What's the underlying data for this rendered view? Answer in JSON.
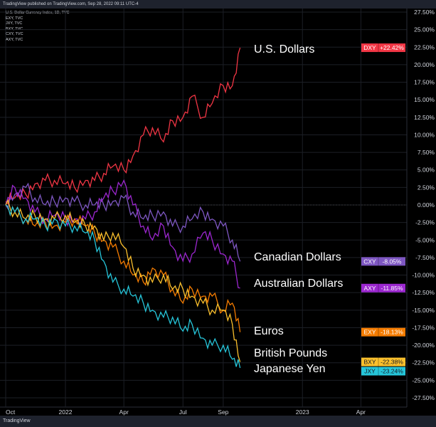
{
  "header": {
    "published": "TradingView published on TradingView.com, Sep 28, 2022 09:11 UTC-4"
  },
  "legend": [
    "U.S. Dollar Currency Index, 1D, TVC",
    "EXY, TVC",
    "JXY, TVC",
    "BXY, TVC",
    "CXY, TVC",
    "AXY, TVC"
  ],
  "footer": {
    "logo": "TradingView"
  },
  "chart_data": {
    "type": "line",
    "xlabel": "",
    "ylabel": "",
    "ylim": [
      -27.5,
      27.5
    ],
    "y_ticks": [
      "27.50%",
      "25.00%",
      "22.50%",
      "20.00%",
      "17.50%",
      "15.00%",
      "12.50%",
      "10.00%",
      "7.50%",
      "5.00%",
      "2.50%",
      "0.00%",
      "-2.50%",
      "-5.00%",
      "-7.50%",
      "-10.00%",
      "-12.50%",
      "-15.00%",
      "-17.50%",
      "-20.00%",
      "-22.50%",
      "-25.00%",
      "-27.50%"
    ],
    "x_ticks": [
      {
        "label": "Oct",
        "date": "2021-10-01"
      },
      {
        "label": "2022",
        "date": "2022-01-01"
      },
      {
        "label": "Apr",
        "date": "2022-04-01"
      },
      {
        "label": "Jul",
        "date": "2022-07-01"
      },
      {
        "label": "Sep",
        "date": "2022-09-01"
      },
      {
        "label": "2023",
        "date": "2023-01-01"
      },
      {
        "label": "Apr",
        "date": "2023-04-01"
      }
    ],
    "grid": true,
    "x": [
      "2021-10-01",
      "2021-10-15",
      "2021-11-01",
      "2021-11-15",
      "2021-12-01",
      "2021-12-15",
      "2022-01-01",
      "2022-01-15",
      "2022-02-01",
      "2022-02-15",
      "2022-03-01",
      "2022-03-15",
      "2022-04-01",
      "2022-04-15",
      "2022-05-01",
      "2022-05-15",
      "2022-06-01",
      "2022-06-15",
      "2022-07-01",
      "2022-07-15",
      "2022-08-01",
      "2022-08-15",
      "2022-09-01",
      "2022-09-15",
      "2022-09-27"
    ],
    "series": [
      {
        "name": "DXY",
        "label": "U.S. Dollars",
        "last": "+22.42%",
        "color": "#f23645",
        "values": [
          0.5,
          1,
          1.5,
          3,
          3.5,
          3.5,
          3,
          2.5,
          3.5,
          3.5,
          4.5,
          5.5,
          5,
          7,
          10,
          11,
          9,
          12,
          12.5,
          15.5,
          12.5,
          14.5,
          17,
          17,
          22.42
        ]
      },
      {
        "name": "CXY",
        "label": "Canadian Dollars",
        "last": "-8.05%",
        "color": "#7e57c2",
        "values": [
          0,
          1.5,
          2.5,
          1,
          0,
          0.5,
          1,
          0.5,
          0,
          0,
          0,
          0.5,
          1,
          -1,
          -2,
          -1.5,
          -1,
          -3,
          -3,
          -2,
          -1,
          -2,
          -3,
          -5,
          -8.05
        ]
      },
      {
        "name": "AXY",
        "label": "Australian Dollars",
        "last": "-11.85%",
        "color": "#9c27d0",
        "values": [
          0,
          2.5,
          1,
          -1,
          -2,
          -1.5,
          -2,
          -2,
          -2,
          -1,
          1,
          2,
          3.5,
          0,
          -3,
          -5,
          -3,
          -6,
          -8,
          -7,
          -4,
          -5,
          -7,
          -8,
          -11.85
        ]
      },
      {
        "name": "EXY",
        "label": "Euros",
        "last": "-18.13%",
        "color": "#f57c00",
        "values": [
          0,
          -1,
          -2,
          -3,
          -2.5,
          -3,
          -2.5,
          -2,
          -3,
          -4,
          -5,
          -6,
          -8,
          -10,
          -11,
          -9,
          -10,
          -12,
          -14,
          -12,
          -13,
          -13,
          -15,
          -14,
          -18.13
        ]
      },
      {
        "name": "BXY",
        "label": "British Pounds",
        "last": "-22.38%",
        "color": "#fbc02d",
        "values": [
          0,
          -1,
          -2,
          -1.5,
          -2,
          -2,
          -1.5,
          -2.5,
          -3,
          -3,
          -5,
          -4,
          -6,
          -9,
          -10,
          -11,
          -10,
          -12,
          -12,
          -13,
          -14,
          -15,
          -15,
          -17,
          -22.38
        ]
      },
      {
        "name": "JXY",
        "label": "Japanese Yen",
        "last": "-23.24%",
        "color": "#26c6da",
        "values": [
          0,
          -1,
          -2,
          -2,
          -3,
          -2,
          -3,
          -3,
          -4,
          -5,
          -8,
          -11,
          -12,
          -13,
          -14,
          -15,
          -16,
          -16,
          -18,
          -17,
          -19,
          -20,
          -20,
          -22,
          -23.24
        ]
      }
    ]
  }
}
